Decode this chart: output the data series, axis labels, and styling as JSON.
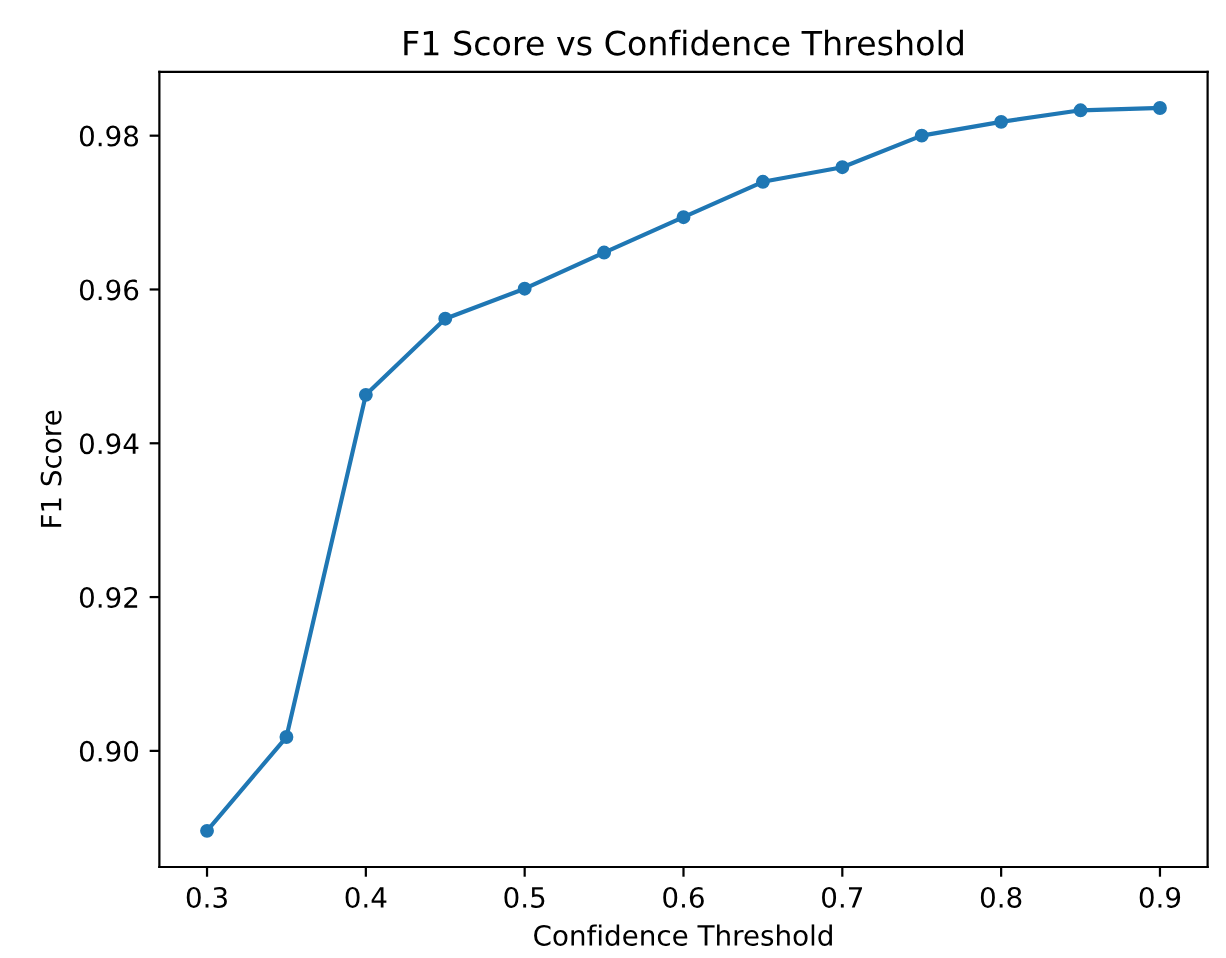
{
  "chart_data": {
    "type": "line",
    "title": "F1 Score vs Confidence Threshold",
    "xlabel": "Confidence Threshold",
    "ylabel": "F1 Score",
    "x": [
      0.3,
      0.35,
      0.4,
      0.45,
      0.5,
      0.55,
      0.6,
      0.65,
      0.7,
      0.75,
      0.8,
      0.85,
      0.9
    ],
    "series": [
      {
        "color": "#1f77b4",
        "values": [
          0.8896,
          0.9018,
          0.9463,
          0.9562,
          0.9601,
          0.9648,
          0.9694,
          0.974,
          0.9759,
          0.98,
          0.9818,
          0.9833,
          0.9836
        ]
      }
    ],
    "xlim": [
      0.27,
      0.93
    ],
    "ylim": [
      0.8849,
      0.9883
    ],
    "xticks": [
      0.3,
      0.4,
      0.5,
      0.6,
      0.7,
      0.8,
      0.9
    ],
    "yticks": [
      {
        "value": 0.9,
        "label": "0.90"
      },
      {
        "value": 0.92,
        "label": "0.92"
      },
      {
        "value": 0.94,
        "label": "0.94"
      },
      {
        "value": 0.96,
        "label": "0.96"
      },
      {
        "value": 0.98,
        "label": "0.98"
      }
    ],
    "marker": "circle",
    "line_style": "solid",
    "grid": false,
    "legend": false
  }
}
